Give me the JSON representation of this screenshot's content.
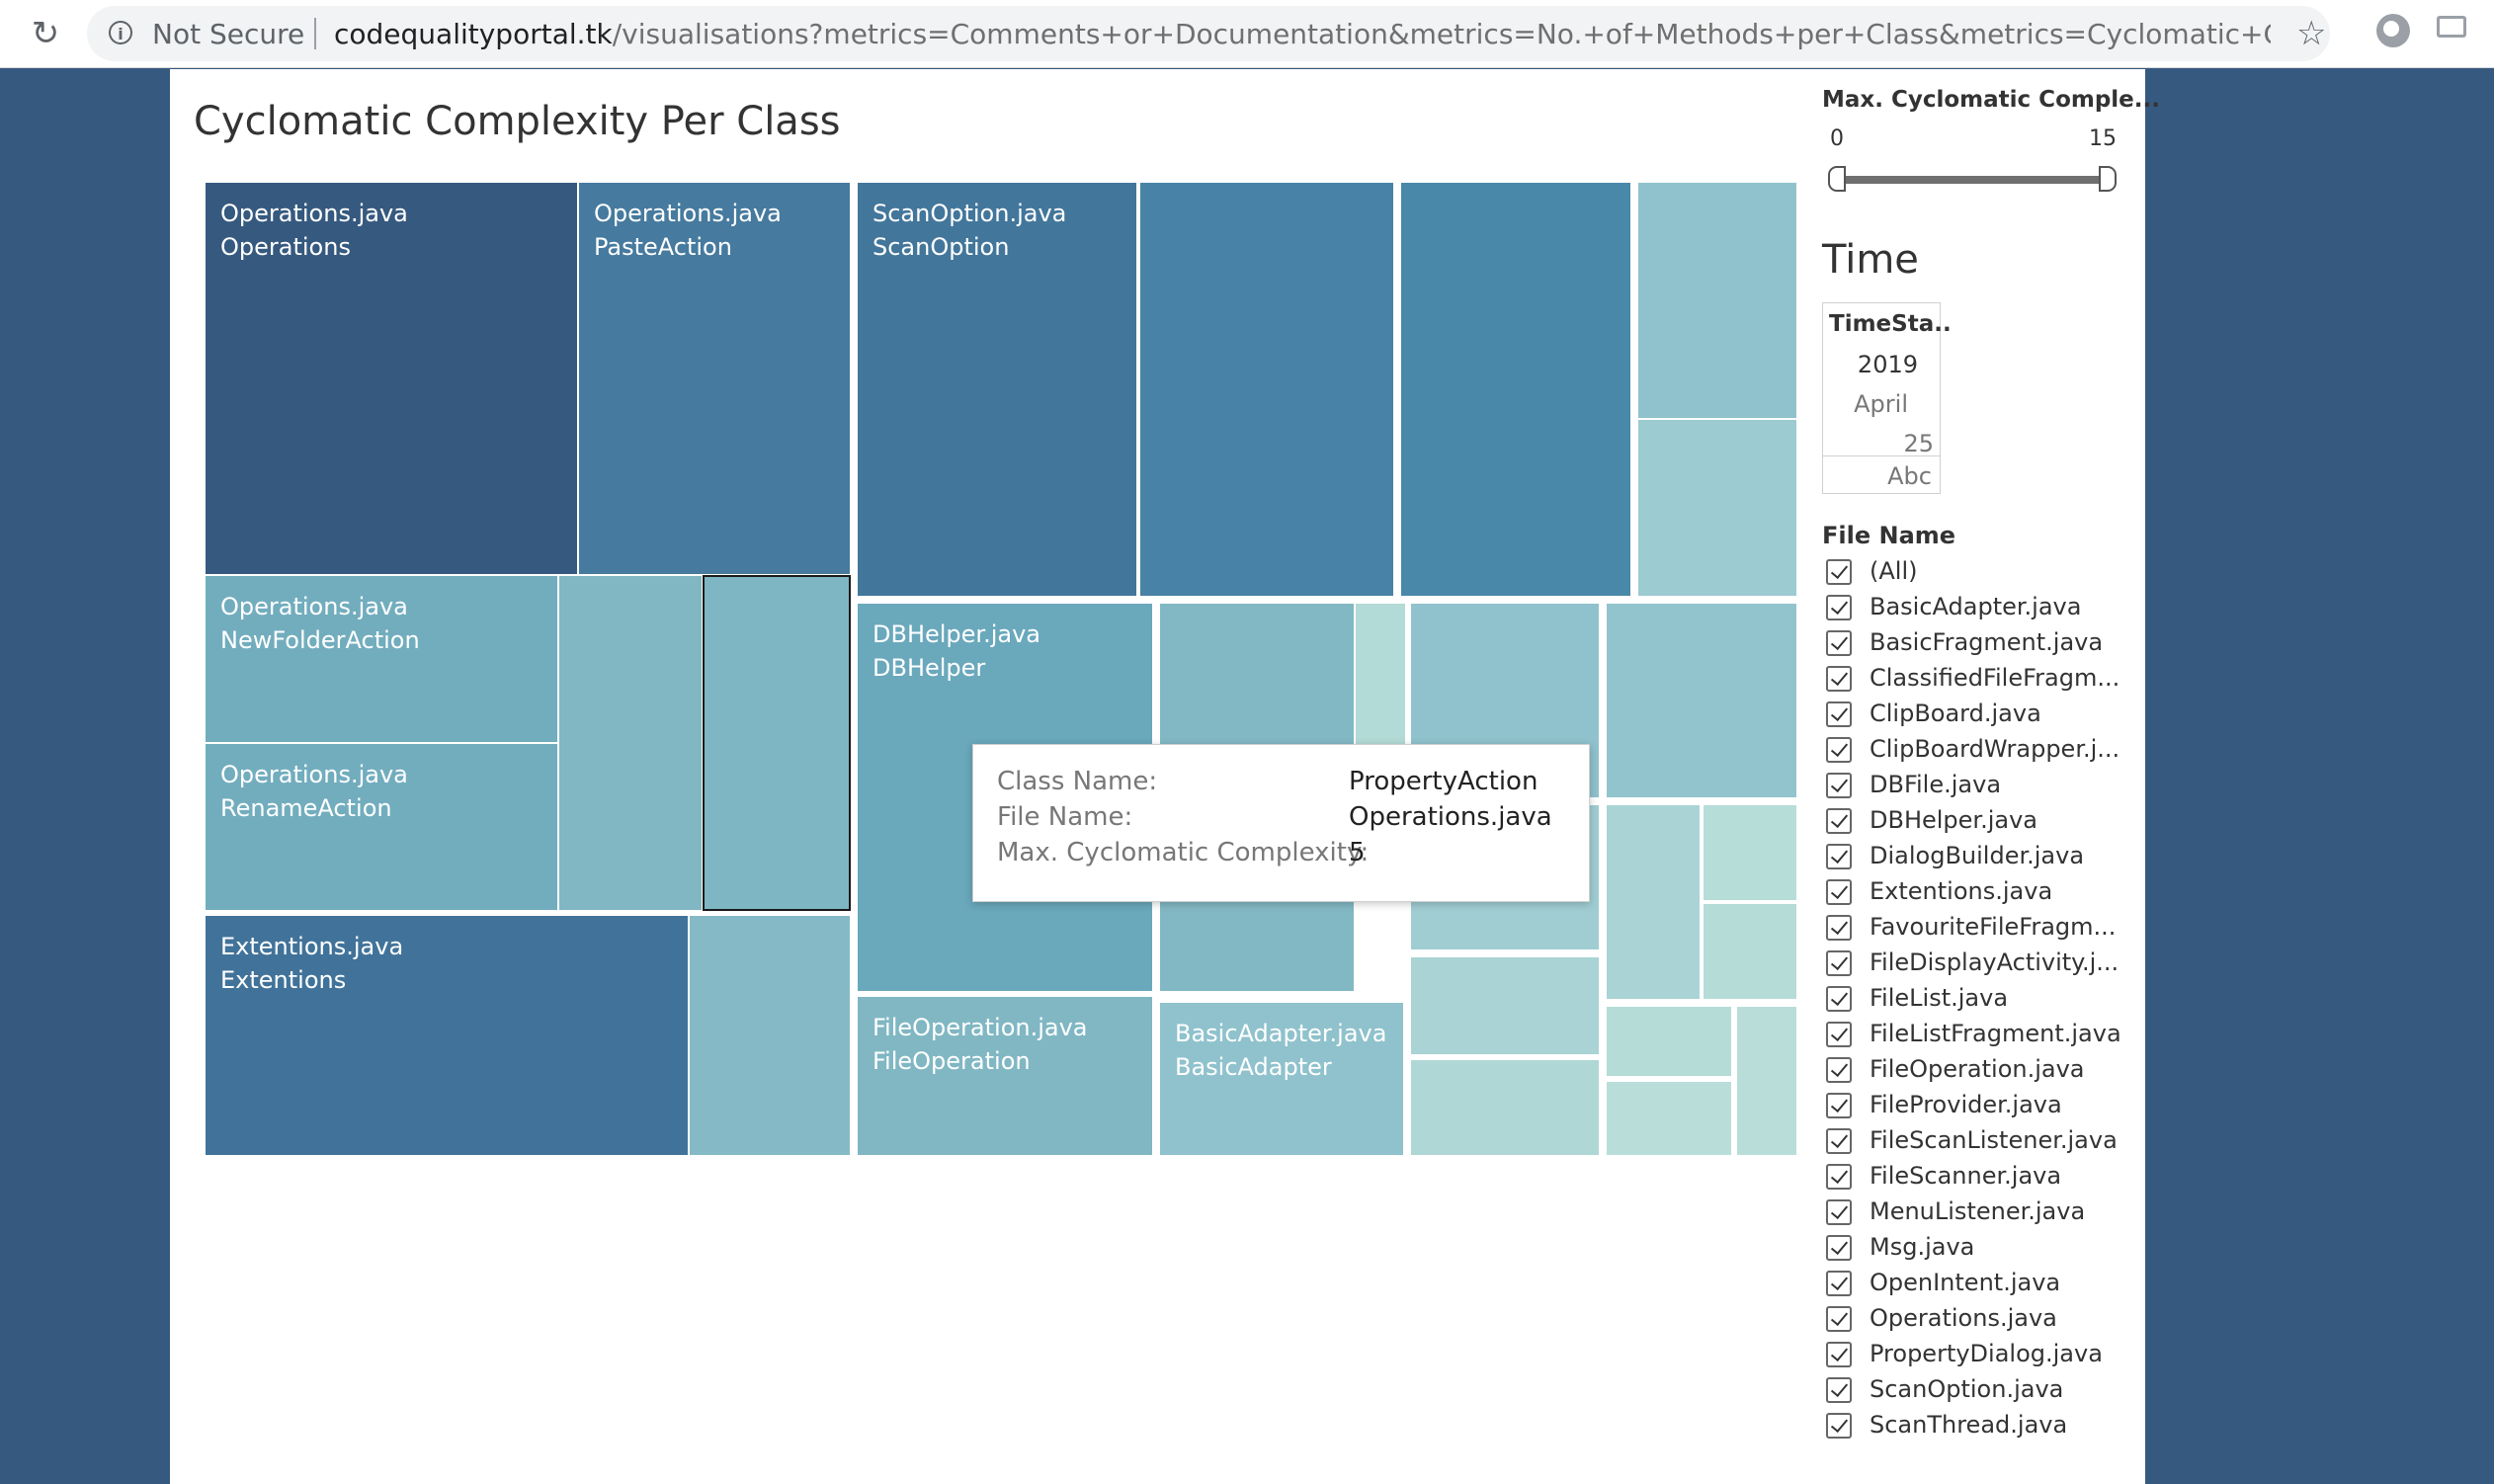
{
  "browser": {
    "security_label": "Not Secure",
    "url_host": "codequalityportal.tk",
    "url_path": "/visualisations?metrics=Comments+or+Documentation&metrics=No.+of+Methods+per+Class&metrics=Cyclomatic+Complexit..."
  },
  "dashboard": {
    "title": "Cyclomatic Complexity Per Class"
  },
  "colors": {
    "darkest": "#36597f",
    "dark": "#41739a",
    "mid_dark": "#4a88a9",
    "mid": "#72adbe",
    "mid_light": "#85b9c6",
    "light": "#98c7cf",
    "lighter": "#a9d3d5",
    "lightest": "#b9ded9",
    "background": "#36597f"
  },
  "treemap": {
    "labeled_tiles": [
      {
        "file": "Operations.java",
        "class": "Operations"
      },
      {
        "file": "Operations.java",
        "class": "PasteAction"
      },
      {
        "file": "ScanOption.java",
        "class": "ScanOption"
      },
      {
        "file": "Operations.java",
        "class": "NewFolderAction"
      },
      {
        "file": "Operations.java",
        "class": "RenameAction"
      },
      {
        "file": "Extentions.java",
        "class": "Extentions"
      },
      {
        "file": "DBHelper.java",
        "class": "DBHelper"
      },
      {
        "file": "FileOperation.java",
        "class": "FileOperation"
      },
      {
        "file": "BasicAdapter.java",
        "class": "BasicAdapter"
      }
    ]
  },
  "tooltip": {
    "class_label": "Class Name:",
    "class_value": "PropertyAction",
    "file_label": "File Name:",
    "file_value": "Operations.java",
    "complexity_label": "Max. Cyclomatic Complexity:",
    "complexity_value": "5"
  },
  "filters": {
    "slider_title": "Max. Cyclomatic Comple...",
    "slider_min": "0",
    "slider_max": "15",
    "time_title": "Time",
    "timestamp_header": "TimeSta..",
    "timestamp_year": "2019",
    "timestamp_month": "April",
    "timestamp_day": "25",
    "timestamp_abc": "Abc",
    "file_name_title": "File Name",
    "file_names": [
      "(All)",
      "BasicAdapter.java",
      "BasicFragment.java",
      "ClassifiedFileFragm...",
      "ClipBoard.java",
      "ClipBoardWrapper.j...",
      "DBFile.java",
      "DBHelper.java",
      "DialogBuilder.java",
      "Extentions.java",
      "FavouriteFileFragm...",
      "FileDisplayActivity.j...",
      "FileList.java",
      "FileListFragment.java",
      "FileOperation.java",
      "FileProvider.java",
      "FileScanListener.java",
      "FileScanner.java",
      "MenuListener.java",
      "Msg.java",
      "OpenIntent.java",
      "Operations.java",
      "PropertyDialog.java",
      "ScanOption.java",
      "ScanThread.java"
    ]
  }
}
